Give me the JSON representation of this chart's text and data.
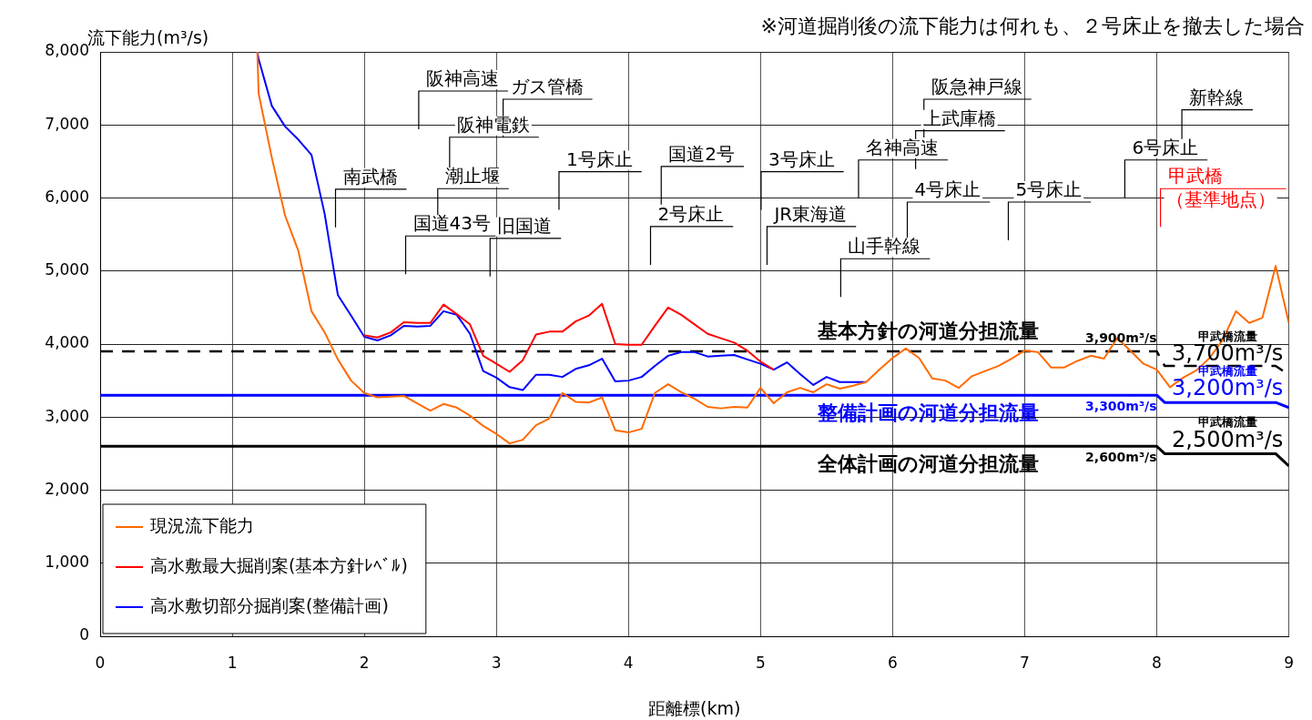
{
  "chart_data": {
    "type": "line",
    "xlabel": "距離標(km)",
    "ylabel": "流下能力(m³/s)",
    "xlim": [
      0,
      9
    ],
    "xticks": [
      0,
      1,
      2,
      3,
      4,
      5,
      6,
      7,
      8,
      9
    ],
    "ylim": [
      0,
      8000
    ],
    "yticks": [
      0,
      {
        "value": 1000,
        "label": "1,000"
      },
      {
        "value": 2000,
        "label": "2,000"
      },
      {
        "value": 3000,
        "label": "3,000"
      },
      {
        "value": 4000,
        "label": "4,000"
      },
      {
        "value": 5000,
        "label": "5,000"
      },
      {
        "value": 6000,
        "label": "6,000"
      },
      {
        "value": 7000,
        "label": "7,000"
      },
      {
        "value": 8000,
        "label": "8,000"
      }
    ],
    "grid": true,
    "legend": "bottom left",
    "marker": "none",
    "line_style": "solid",
    "x": [
      1.19,
      1.2,
      1.3,
      1.4,
      1.5,
      1.6,
      1.7,
      1.8,
      1.9,
      2.0,
      2.1,
      2.2,
      2.3,
      2.4,
      2.5,
      2.6,
      2.7,
      2.8,
      2.9,
      3.0,
      3.1,
      3.2,
      3.3,
      3.4,
      3.5,
      3.6,
      3.7,
      3.8,
      3.9,
      4.0,
      4.1,
      4.2,
      4.3,
      4.4,
      4.5,
      4.6,
      4.7,
      4.8,
      4.9,
      5.0,
      5.1,
      5.2,
      5.3,
      5.4,
      5.5,
      5.6,
      5.7,
      5.8,
      5.9,
      6.0,
      6.1,
      6.2,
      6.3,
      6.4,
      6.5,
      6.6,
      6.7,
      6.8,
      6.9,
      7.0,
      7.1,
      7.2,
      7.3,
      7.4,
      7.5,
      7.6,
      7.7,
      7.8,
      7.9,
      8.0,
      8.1,
      8.2,
      8.3,
      8.4,
      8.5,
      8.6,
      8.7,
      8.8,
      8.9,
      9.0
    ],
    "series": [
      {
        "name": "現況流下能力",
        "color": "#ff6a00",
        "values": [
          8000,
          7430,
          6550,
          5760,
          5280,
          4450,
          4160,
          3790,
          3500,
          3330,
          3270,
          3280,
          3290,
          3190,
          3090,
          3180,
          3130,
          3020,
          2880,
          2770,
          2640,
          2690,
          2890,
          2980,
          3330,
          3210,
          3200,
          3270,
          2820,
          2790,
          2840,
          3330,
          3450,
          3340,
          3250,
          3140,
          3120,
          3140,
          3130,
          3400,
          3190,
          3340,
          3400,
          3340,
          3450,
          3390,
          3430,
          3480,
          3650,
          3810,
          3940,
          3810,
          3530,
          3500,
          3400,
          3560,
          3630,
          3700,
          3800,
          3910,
          3890,
          3680,
          3680,
          3770,
          3840,
          3800,
          4080,
          3910,
          3730,
          3650,
          3410,
          3540,
          3640,
          3810,
          4060,
          4450,
          4290,
          4360,
          5070,
          4290
        ]
      },
      {
        "name": "高水敷最大掘削案(基本方針ﾚﾍﾞﾙ)",
        "color": "#ff0000",
        "values": [
          null,
          null,
          null,
          null,
          null,
          null,
          null,
          null,
          null,
          4120,
          4090,
          4160,
          4300,
          4290,
          4290,
          4540,
          4410,
          4270,
          3840,
          3730,
          3620,
          3780,
          4130,
          4170,
          4170,
          4310,
          4390,
          4550,
          4000,
          3990,
          3990,
          4250,
          4500,
          4400,
          4270,
          4140,
          4080,
          4020,
          3910,
          3760,
          3650,
          null,
          null,
          null,
          null,
          null,
          null,
          null,
          null,
          null,
          null,
          null,
          null,
          null,
          null,
          null,
          null,
          null,
          null,
          null,
          null,
          null,
          null,
          null,
          null,
          null,
          null,
          null,
          null,
          null,
          null,
          null,
          null,
          null,
          null,
          null,
          null,
          null,
          null,
          null
        ]
      },
      {
        "name": "高水敷切部分掘削案(整備計画)",
        "color": "#0000ff",
        "values": [
          8000,
          7900,
          7260,
          6980,
          6800,
          6590,
          5780,
          4670,
          4390,
          4100,
          4050,
          4120,
          4250,
          4240,
          4250,
          4450,
          4400,
          4140,
          3630,
          3540,
          3410,
          3370,
          3580,
          3580,
          3550,
          3660,
          3710,
          3800,
          3490,
          3500,
          3550,
          3700,
          3840,
          3890,
          3890,
          3830,
          3840,
          3850,
          3790,
          3730,
          3650,
          3750,
          3590,
          3440,
          3550,
          3480,
          3480,
          3480,
          null,
          null,
          null,
          null,
          null,
          null,
          null,
          null,
          null,
          null,
          null,
          null,
          null,
          null,
          null,
          null,
          null,
          null,
          null,
          null,
          null,
          null,
          null,
          null,
          null,
          null,
          null,
          null,
          null,
          null,
          null,
          null
        ]
      },
      {
        "name": "基本方針の河道分担流量",
        "color": "#000000",
        "line_style": "dashed",
        "x": [
          0,
          8.0,
          8.06,
          8.9,
          9.0
        ],
        "values": [
          3900,
          3900,
          3700,
          3700,
          3580
        ],
        "value_labels": [
          null,
          "3,900m³/s",
          "甲武橋流量\n3,700m³/s",
          null,
          null
        ]
      },
      {
        "name": "整備計画の河道分担流量",
        "color": "#0000ff",
        "x": [
          0,
          8.0,
          8.06,
          8.9,
          9.0
        ],
        "values": [
          3300,
          3300,
          3200,
          3200,
          3130
        ],
        "value_labels": [
          null,
          "3,300m³/s",
          "甲武橋流量\n3,200m³/s",
          null,
          null
        ]
      },
      {
        "name": "全体計画の河道分担流量",
        "color": "#000000",
        "x": [
          0,
          8.0,
          8.06,
          8.9,
          9.0
        ],
        "values": [
          2600,
          2600,
          2500,
          2500,
          2330
        ],
        "value_labels": [
          null,
          "2,600m³/s",
          "甲武橋流量\n2,500m³/s",
          null,
          null
        ]
      }
    ],
    "annotations": [
      "※河道掘削後の流下能力は何れも、２号床止を撤去した場合",
      "南武橋",
      "阪神高速",
      "ガス管橋",
      "阪神電鉄",
      "潮止堰",
      "国道43号",
      "旧国道",
      "1号床止",
      "国道2号",
      "2号床止",
      "3号床止",
      "JR東海道",
      "山手幹線",
      "名神高速",
      "上武庫橋",
      "阪急神戸線",
      "4号床止",
      "5号床止",
      "6号床止",
      "新幹線",
      "甲武橋（基準地点）"
    ]
  }
}
